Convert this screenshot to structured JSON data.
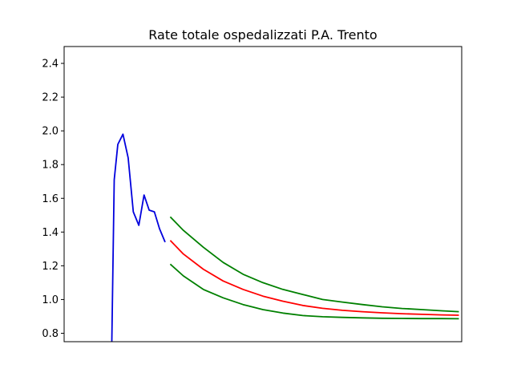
{
  "chart_data": {
    "type": "line",
    "title": "Rate totale ospedalizzati P.A. Trento",
    "xlabel": "",
    "ylabel": "",
    "xlim": [
      0,
      100
    ],
    "ylim": [
      0.75,
      2.5
    ],
    "yticks": [
      "0.8",
      "1.0",
      "1.2",
      "1.4",
      "1.6",
      "1.8",
      "2.0",
      "2.2",
      "2.4"
    ],
    "ytick_values": [
      0.8,
      1.0,
      1.2,
      1.4,
      1.6,
      1.8,
      2.0,
      2.2,
      2.4
    ],
    "grid": false,
    "series": [
      {
        "color": "#0000dd",
        "x": [
          12.0,
          12.6,
          13.5,
          14.8,
          16.1,
          17.4,
          18.8,
          20.1,
          21.4,
          22.7,
          24.0,
          25.4
        ],
        "y": [
          0.75,
          1.71,
          1.92,
          1.98,
          1.84,
          1.52,
          1.44,
          1.62,
          1.53,
          1.52,
          1.42,
          1.34
        ]
      },
      {
        "color": "#ff0000",
        "x": [
          26.7,
          30,
          35,
          40,
          45,
          50,
          55,
          60,
          65,
          70,
          75,
          80,
          85,
          90,
          95,
          99.3
        ],
        "y": [
          1.35,
          1.27,
          1.18,
          1.11,
          1.06,
          1.02,
          0.99,
          0.965,
          0.948,
          0.936,
          0.928,
          0.921,
          0.916,
          0.912,
          0.909,
          0.907
        ]
      },
      {
        "color": "#008000",
        "x": [
          26.7,
          30,
          35,
          40,
          45,
          50,
          55,
          60,
          65,
          70,
          75,
          80,
          85,
          90,
          95,
          99.3
        ],
        "y": [
          1.49,
          1.41,
          1.31,
          1.22,
          1.15,
          1.1,
          1.06,
          1.03,
          1.0,
          0.985,
          0.97,
          0.957,
          0.947,
          0.94,
          0.933,
          0.928
        ]
      },
      {
        "color": "#008000",
        "x": [
          26.7,
          30,
          35,
          40,
          45,
          50,
          55,
          60,
          65,
          70,
          75,
          80,
          85,
          90,
          95,
          99.3
        ],
        "y": [
          1.21,
          1.14,
          1.06,
          1.01,
          0.97,
          0.94,
          0.92,
          0.905,
          0.898,
          0.894,
          0.891,
          0.889,
          0.888,
          0.887,
          0.887,
          0.886
        ]
      }
    ]
  }
}
